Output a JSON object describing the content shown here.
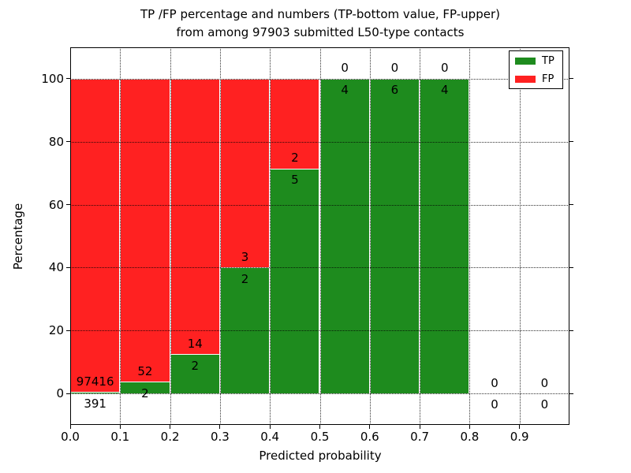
{
  "figure": {
    "title_line1": "TP /FP percentage and numbers (TP-bottom value, FP-upper)",
    "title_line2": "from among 97903 submitted L50-type contacts",
    "total_submitted": 97903,
    "contact_type": "L50"
  },
  "chart_data": {
    "type": "bar",
    "subtype": "stacked-percentage",
    "title": "TP /FP percentage and numbers (TP-bottom value, FP-upper) from among 97903 submitted L50-type contacts",
    "xlabel": "Predicted probability",
    "ylabel": "Percentage",
    "xlim": [
      0.0,
      1.0
    ],
    "ylim": [
      -10,
      110
    ],
    "grid": true,
    "x_tick_labels": [
      "0.0",
      "0.1",
      "0.2",
      "0.3",
      "0.4",
      "0.5",
      "0.6",
      "0.7",
      "0.8",
      "0.9"
    ],
    "x_tick_values": [
      0.0,
      0.1,
      0.2,
      0.3,
      0.4,
      0.5,
      0.6,
      0.7,
      0.8,
      0.9
    ],
    "y_tick_labels": [
      "0",
      "20",
      "40",
      "60",
      "80",
      "100"
    ],
    "y_tick_values": [
      0,
      20,
      40,
      60,
      80,
      100
    ],
    "legend": {
      "position": "upper right",
      "entries": [
        {
          "label": "TP",
          "color": "#1e8b1e"
        },
        {
          "label": "FP",
          "color": "#ff2121"
        }
      ]
    },
    "colors": {
      "tp": "#1e8b1e",
      "fp": "#ff2121",
      "edge": "#ffffff",
      "grid": "#000000"
    },
    "bins": [
      {
        "range": [
          0.0,
          0.1
        ],
        "tp": 391,
        "fp": 97416,
        "tp_pct": 0.4,
        "fp_pct": 99.6
      },
      {
        "range": [
          0.1,
          0.2
        ],
        "tp": 2,
        "fp": 52,
        "tp_pct": 3.7,
        "fp_pct": 96.3
      },
      {
        "range": [
          0.2,
          0.3
        ],
        "tp": 2,
        "fp": 14,
        "tp_pct": 12.5,
        "fp_pct": 87.5
      },
      {
        "range": [
          0.3,
          0.4
        ],
        "tp": 2,
        "fp": 3,
        "tp_pct": 40.0,
        "fp_pct": 60.0
      },
      {
        "range": [
          0.4,
          0.5
        ],
        "tp": 5,
        "fp": 2,
        "tp_pct": 71.4,
        "fp_pct": 28.6
      },
      {
        "range": [
          0.5,
          0.6
        ],
        "tp": 4,
        "fp": 0,
        "tp_pct": 100.0,
        "fp_pct": 0.0
      },
      {
        "range": [
          0.6,
          0.7
        ],
        "tp": 6,
        "fp": 0,
        "tp_pct": 100.0,
        "fp_pct": 0.0
      },
      {
        "range": [
          0.7,
          0.8
        ],
        "tp": 4,
        "fp": 0,
        "tp_pct": 100.0,
        "fp_pct": 0.0
      },
      {
        "range": [
          0.8,
          0.9
        ],
        "tp": 0,
        "fp": 0,
        "tp_pct": null,
        "fp_pct": null
      },
      {
        "range": [
          0.9,
          1.0
        ],
        "tp": 0,
        "fp": 0,
        "tp_pct": null,
        "fp_pct": null
      }
    ]
  }
}
